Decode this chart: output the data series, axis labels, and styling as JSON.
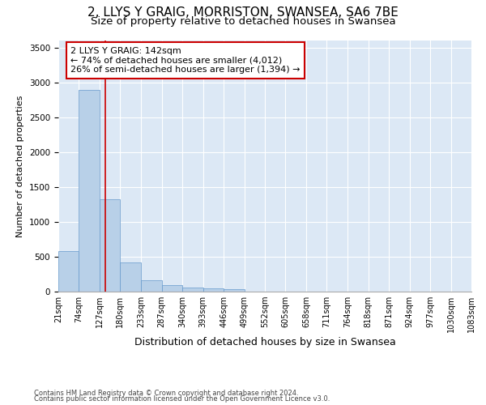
{
  "title_line1": "2, LLYS Y GRAIG, MORRISTON, SWANSEA, SA6 7BE",
  "title_line2": "Size of property relative to detached houses in Swansea",
  "xlabel": "Distribution of detached houses by size in Swansea",
  "ylabel": "Number of detached properties",
  "footnote1": "Contains HM Land Registry data © Crown copyright and database right 2024.",
  "footnote2": "Contains public sector information licensed under the Open Government Licence v3.0.",
  "bar_edges": [
    21,
    74,
    127,
    180,
    233,
    287,
    340,
    393,
    446,
    499,
    552,
    605,
    658,
    711,
    764,
    818,
    871,
    924,
    977,
    1030,
    1083
  ],
  "bar_heights": [
    575,
    2890,
    1320,
    415,
    165,
    90,
    55,
    45,
    38,
    0,
    0,
    0,
    0,
    0,
    0,
    0,
    0,
    0,
    0,
    0
  ],
  "bar_color": "#b8d0e8",
  "bar_edgecolor": "#6699cc",
  "property_size": 142,
  "marker_color": "#cc0000",
  "annotation_text": "2 LLYS Y GRAIG: 142sqm\n← 74% of detached houses are smaller (4,012)\n26% of semi-detached houses are larger (1,394) →",
  "annotation_box_color": "#ffffff",
  "annotation_box_edgecolor": "#cc0000",
  "ylim": [
    0,
    3600
  ],
  "yticks": [
    0,
    500,
    1000,
    1500,
    2000,
    2500,
    3000,
    3500
  ],
  "xlim_left": 21,
  "xlim_right": 1083,
  "background_color": "#ffffff",
  "plot_background": "#dce8f5",
  "title1_fontsize": 11,
  "title2_fontsize": 9.5,
  "tick_label_fontsize": 7,
  "xlabel_fontsize": 9,
  "ylabel_fontsize": 8,
  "annot_fontsize": 8,
  "footnote_fontsize": 6
}
